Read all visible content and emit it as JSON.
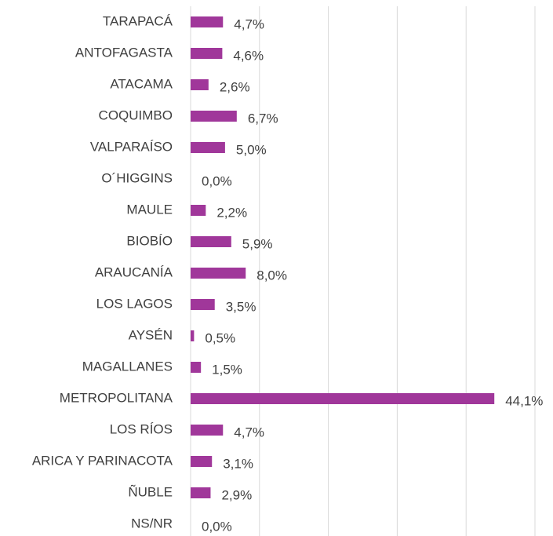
{
  "chart_data": {
    "type": "bar",
    "orientation": "horizontal",
    "categories": [
      "TARAPACÁ",
      "ANTOFAGASTA",
      "ATACAMA",
      "COQUIMBO",
      "VALPARAÍSO",
      "O´HIGGINS",
      "MAULE",
      "BIOBÍO",
      "ARAUCANÍA",
      "LOS LAGOS",
      "AYSÉN",
      "MAGALLANES",
      "METROPOLITANA",
      "LOS RÍOS",
      "ARICA Y PARINACOTA",
      "ÑUBLE",
      "NS/NR"
    ],
    "values": [
      4.7,
      4.6,
      2.6,
      6.7,
      5.0,
      0.0,
      2.2,
      5.9,
      8.0,
      3.5,
      0.5,
      1.5,
      44.1,
      4.7,
      3.1,
      2.9,
      0.0
    ],
    "value_labels": [
      "4,7%",
      "4,6%",
      "2,6%",
      "6,7%",
      "5,0%",
      "0,0%",
      "2,2%",
      "5,9%",
      "8,0%",
      "3,5%",
      "0,5%",
      "1,5%",
      "44,1%",
      "4,7%",
      "3,1%",
      "2,9%",
      "0,0%"
    ],
    "color": "#a0379a",
    "xlim": [
      0,
      50
    ],
    "xticks": [
      0,
      10,
      20,
      30,
      40,
      50
    ],
    "grid": true
  }
}
